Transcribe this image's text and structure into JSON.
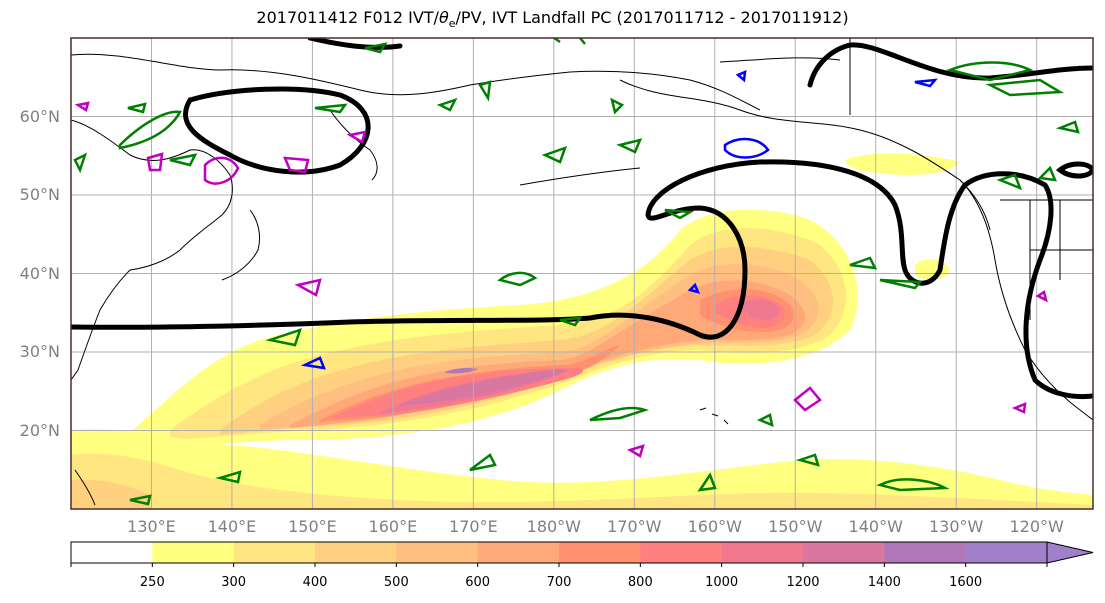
{
  "title": {
    "prefix": "2017011412 F012 IVT/",
    "theta": "θ",
    "theta_sub": "e",
    "suffix": "/PV, IVT Landfall PC (2017011712 - 2017011912)"
  },
  "map": {
    "lat_labels": [
      "60°N",
      "50°N",
      "40°N",
      "30°N",
      "20°N"
    ],
    "lon_labels": [
      "130°E",
      "140°E",
      "150°E",
      "160°E",
      "170°E",
      "180°W",
      "170°W",
      "160°W",
      "150°W",
      "140°W",
      "130°W",
      "120°W"
    ],
    "lon_range": [
      120,
      247
    ],
    "lat_range": [
      10,
      70
    ]
  },
  "colorbar": {
    "levels": [
      "250",
      "300",
      "400",
      "500",
      "600",
      "700",
      "800",
      "1000",
      "1200",
      "1400",
      "1600"
    ],
    "colors": [
      "#ffffff",
      "#ffff80",
      "#ffe680",
      "#ffd080",
      "#ffbf80",
      "#ffa878",
      "#ff9070",
      "#ff8080",
      "#f07890",
      "#d878a0",
      "#b078b8",
      "#a080c8"
    ]
  },
  "colors": {
    "theta_contour": "#000000",
    "pv_green": "#008000",
    "pv_blue": "#0000ff",
    "pv_magenta": "#c000c0",
    "coast": "#000000",
    "grid": "#b0b0b0"
  }
}
